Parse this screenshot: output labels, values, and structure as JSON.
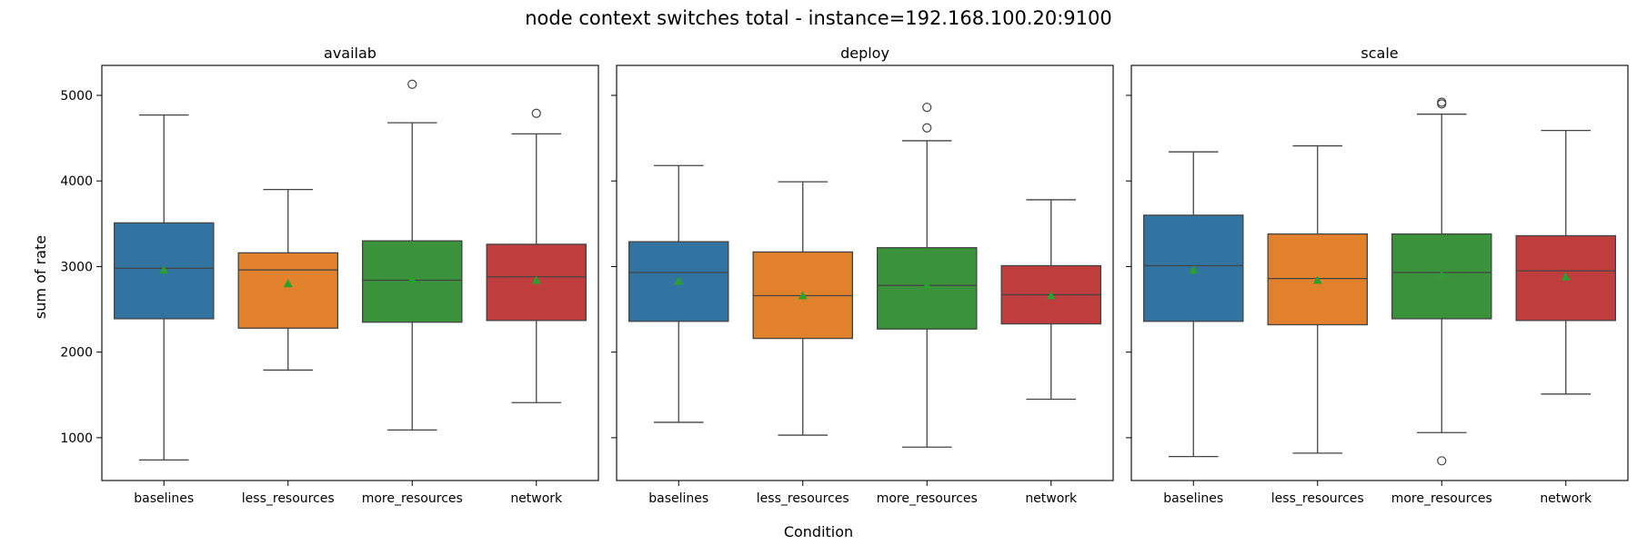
{
  "chart_data": {
    "type": "box",
    "title": "node context switches total - instance=192.168.100.20:9100",
    "xlabel": "Condition",
    "ylabel": "sum of rate",
    "ylim": [
      500,
      5350
    ],
    "yticks": [
      1000,
      2000,
      3000,
      4000,
      5000
    ],
    "categories": [
      "baselines",
      "less_resources",
      "more_resources",
      "network"
    ],
    "colors": [
      "#3274a1",
      "#e1812c",
      "#3a923a",
      "#c03d3e"
    ],
    "mean_marker_color": "#2ca02c",
    "grid": false,
    "panels": [
      {
        "title": "availab",
        "boxes": [
          {
            "category": "baselines",
            "whisker_low": 740,
            "q1": 2390,
            "median": 2980,
            "q3": 3510,
            "whisker_high": 4770,
            "mean": 2960,
            "outliers": []
          },
          {
            "category": "less_resources",
            "whisker_low": 1790,
            "q1": 2280,
            "median": 2960,
            "q3": 3160,
            "whisker_high": 3900,
            "mean": 2800,
            "outliers": []
          },
          {
            "category": "more_resources",
            "whisker_low": 1090,
            "q1": 2350,
            "median": 2840,
            "q3": 3300,
            "whisker_high": 4680,
            "mean": 2850,
            "outliers": [
              5130
            ]
          },
          {
            "category": "network",
            "whisker_low": 1410,
            "q1": 2370,
            "median": 2880,
            "q3": 3260,
            "whisker_high": 4550,
            "mean": 2840,
            "outliers": [
              4790
            ]
          }
        ]
      },
      {
        "title": "deploy",
        "boxes": [
          {
            "category": "baselines",
            "whisker_low": 1180,
            "q1": 2360,
            "median": 2930,
            "q3": 3290,
            "whisker_high": 4180,
            "mean": 2830,
            "outliers": []
          },
          {
            "category": "less_resources",
            "whisker_low": 1030,
            "q1": 2160,
            "median": 2660,
            "q3": 3170,
            "whisker_high": 3990,
            "mean": 2660,
            "outliers": []
          },
          {
            "category": "more_resources",
            "whisker_low": 890,
            "q1": 2270,
            "median": 2780,
            "q3": 3220,
            "whisker_high": 4470,
            "mean": 2780,
            "outliers": [
              4620,
              4860
            ]
          },
          {
            "category": "network",
            "whisker_low": 1450,
            "q1": 2330,
            "median": 2670,
            "q3": 3010,
            "whisker_high": 3780,
            "mean": 2660,
            "outliers": []
          }
        ]
      },
      {
        "title": "scale",
        "boxes": [
          {
            "category": "baselines",
            "whisker_low": 780,
            "q1": 2360,
            "median": 3010,
            "q3": 3600,
            "whisker_high": 4340,
            "mean": 2960,
            "outliers": []
          },
          {
            "category": "less_resources",
            "whisker_low": 820,
            "q1": 2320,
            "median": 2860,
            "q3": 3380,
            "whisker_high": 4410,
            "mean": 2840,
            "outliers": []
          },
          {
            "category": "more_resources",
            "whisker_low": 1060,
            "q1": 2390,
            "median": 2930,
            "q3": 3380,
            "whisker_high": 4780,
            "mean": 2900,
            "outliers": [
              4900,
              4920,
              730
            ]
          },
          {
            "category": "network",
            "whisker_low": 1510,
            "q1": 2370,
            "median": 2950,
            "q3": 3360,
            "whisker_high": 4590,
            "mean": 2880,
            "outliers": []
          }
        ]
      }
    ]
  }
}
